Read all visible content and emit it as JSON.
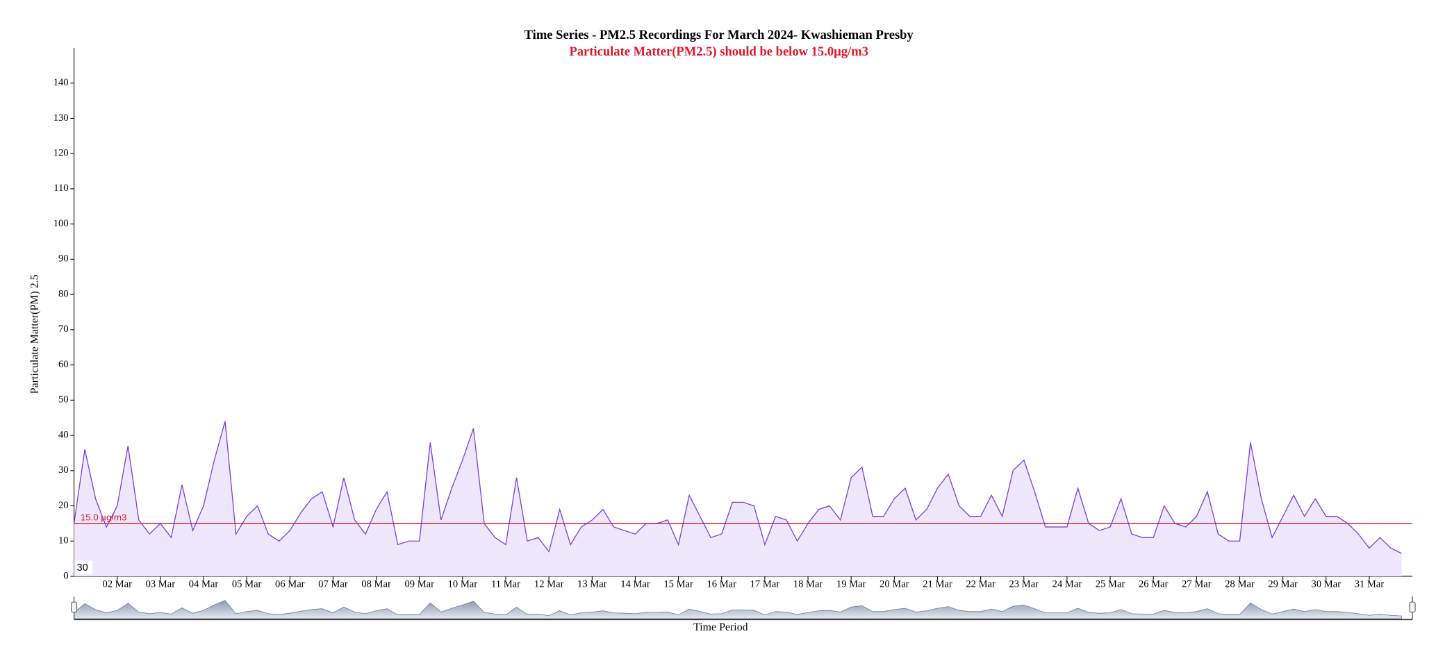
{
  "chart_data": {
    "type": "area",
    "title": "Time Series - PM2.5 Recordings For March 2024- Kwashieman Presby",
    "subtitle": "Particulate Matter(PM2.5) should be below 15.0µg/m3",
    "y_label": "Particulate Matter(PM) 2.5",
    "x_label": "Time Period",
    "navigator_label": "30",
    "color": "#7b3fe4",
    "fill": "#efe8fd",
    "threshold": {
      "value": 15,
      "label": "15.0 µg/m3",
      "color": "#e0162b"
    },
    "xlim": [
      1,
      32
    ],
    "xticks": [
      {
        "value": 2,
        "label": "02 Mar"
      },
      {
        "value": 3,
        "label": "03 Mar"
      },
      {
        "value": 4,
        "label": "04 Mar"
      },
      {
        "value": 5,
        "label": "05 Mar"
      },
      {
        "value": 6,
        "label": "06 Mar"
      },
      {
        "value": 7,
        "label": "07 Mar"
      },
      {
        "value": 8,
        "label": "08 Mar"
      },
      {
        "value": 9,
        "label": "09 Mar"
      },
      {
        "value": 10,
        "label": "10 Mar"
      },
      {
        "value": 11,
        "label": "11 Mar"
      },
      {
        "value": 12,
        "label": "12 Mar"
      },
      {
        "value": 13,
        "label": "13 Mar"
      },
      {
        "value": 14,
        "label": "14 Mar"
      },
      {
        "value": 15,
        "label": "15 Mar"
      },
      {
        "value": 16,
        "label": "16 Mar"
      },
      {
        "value": 17,
        "label": "17 Mar"
      },
      {
        "value": 18,
        "label": "18 Mar"
      },
      {
        "value": 19,
        "label": "19 Mar"
      },
      {
        "value": 20,
        "label": "20 Mar"
      },
      {
        "value": 21,
        "label": "21 Mar"
      },
      {
        "value": 22,
        "label": "22 Mar"
      },
      {
        "value": 23,
        "label": "23 Mar"
      },
      {
        "value": 24,
        "label": "24 Mar"
      },
      {
        "value": 25,
        "label": "25 Mar"
      },
      {
        "value": 26,
        "label": "26 Mar"
      },
      {
        "value": 27,
        "label": "27 Mar"
      },
      {
        "value": 28,
        "label": "28 Mar"
      },
      {
        "value": 29,
        "label": "29 Mar"
      },
      {
        "value": 30,
        "label": "30 Mar"
      },
      {
        "value": 31,
        "label": "31 Mar"
      }
    ],
    "ylim": [
      0,
      150
    ],
    "yticks": [
      0,
      10,
      20,
      30,
      40,
      50,
      60,
      70,
      80,
      90,
      100,
      110,
      120,
      130,
      140
    ],
    "x": [
      1,
      1.25,
      1.5,
      1.75,
      2,
      2.25,
      2.5,
      2.75,
      3,
      3.25,
      3.5,
      3.75,
      4,
      4.25,
      4.5,
      4.75,
      5,
      5.25,
      5.5,
      5.75,
      6,
      6.25,
      6.5,
      6.75,
      7,
      7.25,
      7.5,
      7.75,
      8,
      8.25,
      8.5,
      8.75,
      9,
      9.25,
      9.5,
      9.75,
      10,
      10.25,
      10.5,
      10.75,
      11,
      11.25,
      11.5,
      11.75,
      12,
      12.25,
      12.5,
      12.75,
      13,
      13.25,
      13.5,
      13.75,
      14,
      14.25,
      14.5,
      14.75,
      15,
      15.25,
      15.5,
      15.75,
      16,
      16.25,
      16.5,
      16.75,
      17,
      17.25,
      17.5,
      17.75,
      18,
      18.25,
      18.5,
      18.75,
      19,
      19.25,
      19.5,
      19.75,
      20,
      20.25,
      20.5,
      20.75,
      21,
      21.25,
      21.5,
      21.75,
      22,
      22.25,
      22.5,
      22.75,
      23,
      23.25,
      23.5,
      23.75,
      24,
      24.25,
      24.5,
      24.75,
      25,
      25.25,
      25.5,
      25.75,
      26,
      26.25,
      26.5,
      26.75,
      27,
      27.25,
      27.5,
      27.75,
      28,
      28.25,
      28.5,
      28.75,
      29,
      29.25,
      29.5,
      29.75,
      30,
      30.25,
      30.5,
      30.75,
      31,
      31.25,
      31.5,
      31.75
    ],
    "values": [
      15,
      36,
      22,
      14,
      20,
      37,
      16,
      12,
      15,
      11,
      26,
      13,
      20,
      33,
      44,
      12,
      17,
      20,
      12,
      10,
      13,
      18,
      22,
      24,
      14,
      28,
      16,
      12,
      19,
      24,
      9,
      10,
      10,
      38,
      16,
      25,
      33,
      42,
      15,
      11,
      9,
      28,
      10,
      11,
      7,
      19,
      9,
      14,
      16,
      19,
      14,
      13,
      12,
      15,
      15,
      16,
      9,
      23,
      17,
      11,
      12,
      21,
      21,
      20,
      9,
      17,
      16,
      10,
      15,
      19,
      20,
      16,
      28,
      31,
      17,
      17,
      22,
      25,
      16,
      19,
      25,
      29,
      20,
      17,
      17,
      23,
      17,
      30,
      33,
      24,
      14,
      14,
      14,
      25,
      15,
      13,
      14,
      22,
      12,
      11,
      11,
      20,
      15,
      14,
      17,
      24,
      12,
      10,
      10,
      38,
      22,
      11,
      17,
      23,
      17,
      22,
      17,
      17,
      15,
      12,
      8,
      11,
      8,
      6.5
    ]
  }
}
